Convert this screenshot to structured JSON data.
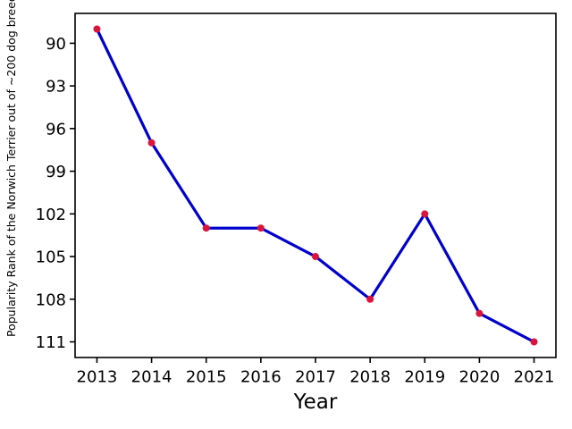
{
  "chart_data": {
    "type": "line",
    "title": "",
    "xlabel": "Year",
    "ylabel": "Popularity Rank of the Norwich Terrier out of ~200 dog breeds",
    "x": [
      2013,
      2014,
      2015,
      2016,
      2017,
      2018,
      2019,
      2020,
      2021
    ],
    "values": [
      89,
      97,
      103,
      103,
      105,
      108,
      102,
      109,
      111
    ],
    "x_ticks": [
      "2013",
      "2014",
      "2015",
      "2016",
      "2017",
      "2018",
      "2019",
      "2020",
      "2021"
    ],
    "y_ticks": [
      "90",
      "93",
      "96",
      "99",
      "102",
      "105",
      "108",
      "111"
    ],
    "y_tick_values": [
      90,
      93,
      96,
      99,
      102,
      105,
      108,
      111
    ],
    "xlim": [
      2012.6,
      2021.4
    ],
    "ylim": [
      87.9,
      112.1
    ],
    "y_axis_inverted": true,
    "grid": false,
    "legend": false,
    "line_color": "#0000cd",
    "marker_color": "#dc143c",
    "axis_color": "#000000",
    "background_color": "#ffffff"
  }
}
